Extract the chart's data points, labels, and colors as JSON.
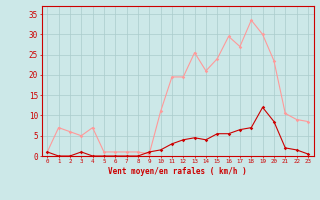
{
  "x": [
    0,
    1,
    2,
    3,
    4,
    5,
    6,
    7,
    8,
    9,
    10,
    11,
    12,
    13,
    14,
    15,
    16,
    17,
    18,
    19,
    20,
    21,
    22,
    23
  ],
  "avg_wind": [
    1,
    0,
    0,
    1,
    0,
    0,
    0,
    0,
    0,
    1,
    1.5,
    3,
    4,
    4.5,
    4,
    5.5,
    5.5,
    6.5,
    7,
    12,
    8.5,
    2,
    1.5,
    0.5
  ],
  "gust_wind": [
    1,
    7,
    6,
    5,
    7,
    1,
    1,
    1,
    1,
    0.5,
    11,
    19.5,
    19.5,
    25.5,
    21,
    24,
    29.5,
    27,
    33.5,
    30,
    23.5,
    10.5,
    9,
    8.5
  ],
  "avg_color": "#cc0000",
  "gust_color": "#ff9999",
  "bg_color": "#cce8e8",
  "grid_color": "#aacccc",
  "xlabel": "Vent moyen/en rafales ( km/h )",
  "yticks": [
    0,
    5,
    10,
    15,
    20,
    25,
    30,
    35
  ],
  "xlim": [
    -0.5,
    23.5
  ],
  "ylim": [
    0,
    37
  ]
}
